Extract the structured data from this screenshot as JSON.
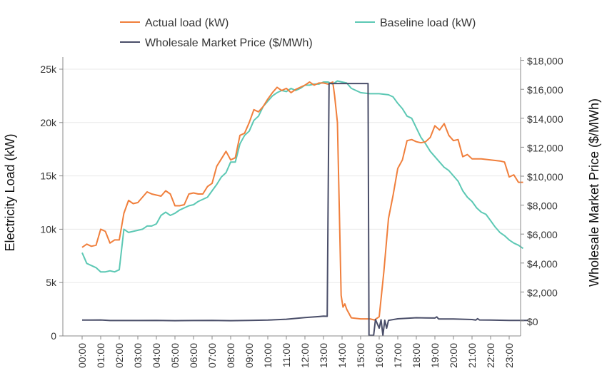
{
  "chart_data": {
    "type": "line",
    "xlabel": "",
    "ylabel": "Electricity Load (kW)",
    "y2label": "Wholesale Market Price ($/MWh)",
    "x_ticks": [
      "00:00",
      "01:00",
      "02:00",
      "03:00",
      "04:00",
      "05:00",
      "06:00",
      "07:00",
      "08:00",
      "09:00",
      "10:00",
      "11:00",
      "12:00",
      "13:00",
      "14:00",
      "15:00",
      "16:00",
      "17:00",
      "18:00",
      "19:00",
      "20:00",
      "21:00",
      "22:00",
      "23:00"
    ],
    "y_ticks": [
      "0",
      "5k",
      "10k",
      "15k",
      "20k",
      "25k"
    ],
    "y_tick_values": [
      0,
      5000,
      10000,
      15000,
      20000,
      25000
    ],
    "y2_ticks": [
      "$0",
      "$2,000",
      "$4,000",
      "$6,000",
      "$8,000",
      "$10,000",
      "$12,000",
      "$14,000",
      "$16,000",
      "$18,000"
    ],
    "y2_tick_values": [
      0,
      2000,
      4000,
      6000,
      8000,
      10000,
      12000,
      14000,
      16000,
      18000
    ],
    "xlim_hours": [
      0,
      24
    ],
    "ylim": [
      0,
      25000
    ],
    "y2lim": [
      -1000,
      18000
    ],
    "grid": true,
    "legend_position": "top",
    "series": [
      {
        "name": "Actual load (kW)",
        "axis": "left",
        "color": "#f07f3c",
        "points": [
          [
            0,
            8300
          ],
          [
            0.25,
            8600
          ],
          [
            0.5,
            8400
          ],
          [
            0.75,
            8500
          ],
          [
            1.0,
            10000
          ],
          [
            1.25,
            9800
          ],
          [
            1.5,
            8700
          ],
          [
            1.75,
            9000
          ],
          [
            2.0,
            9000
          ],
          [
            2.25,
            11500
          ],
          [
            2.5,
            12700
          ],
          [
            2.75,
            12400
          ],
          [
            3.0,
            12500
          ],
          [
            3.25,
            13000
          ],
          [
            3.5,
            13500
          ],
          [
            3.75,
            13300
          ],
          [
            4.0,
            13200
          ],
          [
            4.25,
            13100
          ],
          [
            4.5,
            13600
          ],
          [
            4.75,
            13300
          ],
          [
            5.0,
            12200
          ],
          [
            5.25,
            12200
          ],
          [
            5.5,
            12300
          ],
          [
            5.75,
            13300
          ],
          [
            6.0,
            13400
          ],
          [
            6.25,
            13300
          ],
          [
            6.5,
            13300
          ],
          [
            6.75,
            14000
          ],
          [
            7.0,
            14300
          ],
          [
            7.25,
            15900
          ],
          [
            7.5,
            16600
          ],
          [
            7.75,
            17300
          ],
          [
            8.0,
            16500
          ],
          [
            8.25,
            16700
          ],
          [
            8.5,
            18800
          ],
          [
            8.75,
            19000
          ],
          [
            9.0,
            20000
          ],
          [
            9.25,
            21200
          ],
          [
            9.5,
            21000
          ],
          [
            9.75,
            21500
          ],
          [
            10.0,
            22200
          ],
          [
            10.25,
            22800
          ],
          [
            10.5,
            23300
          ],
          [
            10.75,
            23000
          ],
          [
            11.0,
            23200
          ],
          [
            11.25,
            22800
          ],
          [
            11.5,
            23100
          ],
          [
            11.75,
            23300
          ],
          [
            12.0,
            23500
          ],
          [
            12.25,
            23800
          ],
          [
            12.5,
            23500
          ],
          [
            12.75,
            23700
          ],
          [
            13.0,
            23700
          ],
          [
            13.25,
            23600
          ],
          [
            13.5,
            23800
          ],
          [
            13.6,
            22500
          ],
          [
            13.75,
            20000
          ],
          [
            13.85,
            12000
          ],
          [
            13.95,
            3800
          ],
          [
            14.05,
            2700
          ],
          [
            14.15,
            3000
          ],
          [
            14.25,
            2500
          ],
          [
            14.5,
            1700
          ],
          [
            15.0,
            1600
          ],
          [
            15.5,
            1600
          ],
          [
            15.75,
            1500
          ],
          [
            16.0,
            1800
          ],
          [
            16.25,
            6000
          ],
          [
            16.5,
            11000
          ],
          [
            16.75,
            13200
          ],
          [
            17.0,
            15700
          ],
          [
            17.25,
            16500
          ],
          [
            17.5,
            18300
          ],
          [
            17.75,
            18400
          ],
          [
            18.0,
            18200
          ],
          [
            18.25,
            18100
          ],
          [
            18.5,
            18200
          ],
          [
            18.75,
            18600
          ],
          [
            19.0,
            19700
          ],
          [
            19.25,
            19300
          ],
          [
            19.5,
            19900
          ],
          [
            19.75,
            18800
          ],
          [
            20.0,
            18300
          ],
          [
            20.25,
            18400
          ],
          [
            20.5,
            16800
          ],
          [
            20.75,
            17000
          ],
          [
            21.0,
            16600
          ],
          [
            21.5,
            16600
          ],
          [
            22.0,
            16500
          ],
          [
            22.5,
            16400
          ],
          [
            22.75,
            16300
          ],
          [
            23.0,
            14900
          ],
          [
            23.25,
            15100
          ],
          [
            23.5,
            14400
          ],
          [
            23.75,
            14400
          ]
        ]
      },
      {
        "name": "Baseline load (kW)",
        "axis": "left",
        "color": "#5cc8b4",
        "points": [
          [
            0,
            7800
          ],
          [
            0.25,
            6800
          ],
          [
            0.5,
            6600
          ],
          [
            0.75,
            6400
          ],
          [
            1.0,
            6000
          ],
          [
            1.25,
            6000
          ],
          [
            1.5,
            6100
          ],
          [
            1.75,
            6000
          ],
          [
            2.0,
            6200
          ],
          [
            2.25,
            10000
          ],
          [
            2.5,
            9700
          ],
          [
            2.75,
            9800
          ],
          [
            3.0,
            9900
          ],
          [
            3.25,
            10000
          ],
          [
            3.5,
            10300
          ],
          [
            3.75,
            10300
          ],
          [
            4.0,
            10500
          ],
          [
            4.25,
            11300
          ],
          [
            4.5,
            11600
          ],
          [
            4.75,
            11300
          ],
          [
            5.0,
            11500
          ],
          [
            5.25,
            11800
          ],
          [
            5.5,
            12000
          ],
          [
            5.75,
            12200
          ],
          [
            6.0,
            12300
          ],
          [
            6.25,
            12600
          ],
          [
            6.5,
            12800
          ],
          [
            6.75,
            13000
          ],
          [
            7.0,
            13600
          ],
          [
            7.25,
            14200
          ],
          [
            7.5,
            14900
          ],
          [
            7.75,
            15300
          ],
          [
            8.0,
            16300
          ],
          [
            8.25,
            16300
          ],
          [
            8.5,
            18000
          ],
          [
            8.75,
            18800
          ],
          [
            9.0,
            19200
          ],
          [
            9.25,
            20200
          ],
          [
            9.5,
            20600
          ],
          [
            9.75,
            21500
          ],
          [
            10.0,
            22000
          ],
          [
            10.25,
            22500
          ],
          [
            10.5,
            22800
          ],
          [
            10.75,
            23000
          ],
          [
            11.0,
            22900
          ],
          [
            11.25,
            23200
          ],
          [
            11.5,
            23000
          ],
          [
            11.75,
            23200
          ],
          [
            12.0,
            23500
          ],
          [
            12.25,
            23500
          ],
          [
            12.5,
            23600
          ],
          [
            12.75,
            23600
          ],
          [
            13.0,
            23800
          ],
          [
            13.25,
            23800
          ],
          [
            13.5,
            23600
          ],
          [
            13.75,
            23900
          ],
          [
            14.0,
            23800
          ],
          [
            14.25,
            23700
          ],
          [
            14.5,
            23200
          ],
          [
            14.75,
            23000
          ],
          [
            15.0,
            22800
          ],
          [
            15.5,
            22700
          ],
          [
            16.0,
            22700
          ],
          [
            16.5,
            22600
          ],
          [
            16.75,
            22400
          ],
          [
            17.0,
            21800
          ],
          [
            17.25,
            21300
          ],
          [
            17.5,
            20600
          ],
          [
            17.75,
            20400
          ],
          [
            18.0,
            19500
          ],
          [
            18.25,
            18600
          ],
          [
            18.5,
            18000
          ],
          [
            18.75,
            17300
          ],
          [
            19.0,
            16800
          ],
          [
            19.25,
            16300
          ],
          [
            19.5,
            15800
          ],
          [
            19.75,
            15500
          ],
          [
            20.0,
            15000
          ],
          [
            20.25,
            14500
          ],
          [
            20.5,
            13600
          ],
          [
            20.75,
            13000
          ],
          [
            21.0,
            12600
          ],
          [
            21.25,
            12000
          ],
          [
            21.5,
            11600
          ],
          [
            21.75,
            11400
          ],
          [
            22.0,
            10800
          ],
          [
            22.25,
            10200
          ],
          [
            22.5,
            9700
          ],
          [
            22.75,
            9400
          ],
          [
            23.0,
            9000
          ],
          [
            23.25,
            8700
          ],
          [
            23.5,
            8500
          ],
          [
            23.75,
            8200
          ]
        ]
      },
      {
        "name": "Wholesale Market Price ($/MWh)",
        "axis": "right",
        "color": "#4a4e69",
        "points": [
          [
            0,
            60
          ],
          [
            1,
            70
          ],
          [
            1.5,
            30
          ],
          [
            2,
            30
          ],
          [
            3,
            30
          ],
          [
            4,
            40
          ],
          [
            5,
            20
          ],
          [
            6,
            30
          ],
          [
            7,
            40
          ],
          [
            8,
            20
          ],
          [
            9,
            40
          ],
          [
            10,
            60
          ],
          [
            11,
            120
          ],
          [
            12,
            230
          ],
          [
            12.75,
            300
          ],
          [
            13.0,
            330
          ],
          [
            13.2,
            320
          ],
          [
            13.3,
            16400
          ],
          [
            15.4,
            16400
          ],
          [
            15.45,
            -1000
          ],
          [
            15.7,
            -1000
          ],
          [
            15.8,
            100
          ],
          [
            16.0,
            -500
          ],
          [
            16.1,
            80
          ],
          [
            16.2,
            -1000
          ],
          [
            16.3,
            50
          ],
          [
            16.4,
            -500
          ],
          [
            16.5,
            40
          ],
          [
            17,
            150
          ],
          [
            18,
            220
          ],
          [
            18.5,
            210
          ],
          [
            19,
            200
          ],
          [
            19.1,
            280
          ],
          [
            19.2,
            140
          ],
          [
            20,
            140
          ],
          [
            20.5,
            120
          ],
          [
            21,
            100
          ],
          [
            21.2,
            60
          ],
          [
            21.3,
            160
          ],
          [
            21.4,
            70
          ],
          [
            22,
            60
          ],
          [
            23,
            40
          ],
          [
            24,
            40
          ]
        ]
      }
    ]
  }
}
